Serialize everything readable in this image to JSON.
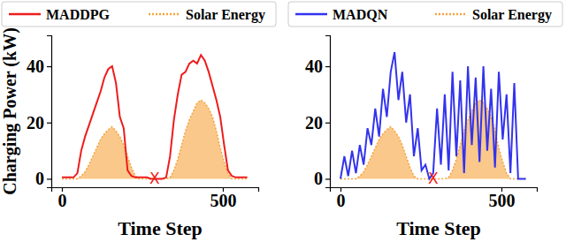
{
  "chart_data": [
    {
      "type": "line",
      "x_label": "Time Step",
      "y_label": "Charging Power (kW)",
      "x": [
        0,
        12,
        24,
        36,
        48,
        60,
        72,
        84,
        96,
        108,
        120,
        132,
        144,
        156,
        168,
        180,
        192,
        204,
        216,
        228,
        240,
        252,
        264,
        276,
        288,
        300,
        312,
        324,
        336,
        348,
        360,
        372,
        384,
        396,
        408,
        420,
        432,
        444,
        456,
        468,
        480,
        492,
        504,
        516,
        528,
        540,
        552,
        564,
        576
      ],
      "series": [
        {
          "name": "MADDPG",
          "color": "#ee1c1c",
          "type": "line",
          "line_style": "solid",
          "values": [
            0.5,
            0.5,
            0.5,
            0.5,
            2,
            10,
            15,
            19,
            23,
            27,
            31,
            36,
            39,
            40,
            34,
            22,
            18,
            3,
            1,
            0.5,
            0.5,
            0.5,
            0.5,
            0,
            0,
            0,
            0,
            0.5,
            8,
            21,
            30,
            37,
            38,
            41,
            42,
            41,
            44,
            42,
            38,
            33,
            28,
            22,
            12,
            3,
            1,
            0.5,
            0.5,
            0.5,
            0.5
          ]
        },
        {
          "name": "Solar Energy",
          "color": "#f5a33c",
          "type": "area",
          "line_style": "dotted",
          "values": [
            0,
            0,
            0,
            0,
            0,
            1,
            2.5,
            5,
            8,
            11,
            14,
            16,
            17.5,
            18.5,
            17,
            15,
            12,
            8,
            4,
            1,
            0,
            0,
            0,
            0,
            0,
            0,
            0,
            0,
            0.5,
            3,
            7,
            12,
            17,
            21,
            24,
            27,
            28,
            27,
            25,
            22,
            17,
            11,
            6,
            2,
            0,
            0,
            0,
            0,
            0
          ]
        }
      ],
      "annotations": [
        {
          "text": "X",
          "x": 288,
          "y": 0,
          "color": "#ee1c1c"
        }
      ],
      "xlim": [
        -33,
        610
      ],
      "xticks": [
        0,
        500
      ],
      "ylim": [
        -3,
        51
      ],
      "yticks": [
        0,
        20,
        40
      ],
      "grid": false,
      "legend": "top"
    },
    {
      "type": "line",
      "x_label": "Time Step",
      "x": [
        0,
        12,
        24,
        36,
        48,
        60,
        72,
        84,
        96,
        108,
        120,
        132,
        144,
        156,
        168,
        180,
        192,
        204,
        216,
        228,
        240,
        252,
        264,
        276,
        288,
        300,
        312,
        324,
        336,
        348,
        360,
        372,
        384,
        396,
        408,
        420,
        432,
        444,
        456,
        468,
        480,
        492,
        504,
        516,
        528,
        540,
        552,
        564,
        576
      ],
      "series": [
        {
          "name": "MADQN",
          "color": "#3333ee",
          "type": "line",
          "line_style": "solid",
          "values": [
            0,
            8,
            1,
            10,
            2,
            12,
            5,
            18,
            12,
            25,
            15,
            32,
            22,
            38,
            45,
            28,
            38,
            20,
            30,
            8,
            18,
            3,
            5,
            0,
            2,
            25,
            5,
            30,
            3,
            38,
            8,
            35,
            2,
            40,
            12,
            36,
            6,
            40,
            10,
            32,
            4,
            38,
            14,
            30,
            2,
            34,
            0,
            0,
            0
          ]
        },
        {
          "name": "Solar Energy",
          "color": "#f5a33c",
          "type": "area",
          "line_style": "dotted",
          "values": [
            0,
            0,
            0,
            0,
            0,
            1,
            2.5,
            5,
            8,
            11,
            14,
            16,
            17.5,
            18.5,
            17,
            15,
            12,
            8,
            4,
            1,
            0,
            0,
            0,
            0,
            0,
            0,
            0,
            0,
            0.5,
            3,
            7,
            12,
            17,
            21,
            24,
            27,
            28,
            27,
            25,
            22,
            17,
            11,
            6,
            2,
            0,
            0,
            0,
            0,
            0
          ]
        }
      ],
      "annotations": [
        {
          "text": "X",
          "x": 288,
          "y": 0,
          "color": "#ee1c1c"
        }
      ],
      "xlim": [
        -33,
        610
      ],
      "xticks": [
        0,
        500
      ],
      "ylim": [
        -3,
        51
      ],
      "yticks": [
        0,
        20,
        40
      ],
      "grid": false,
      "legend": "top"
    }
  ]
}
